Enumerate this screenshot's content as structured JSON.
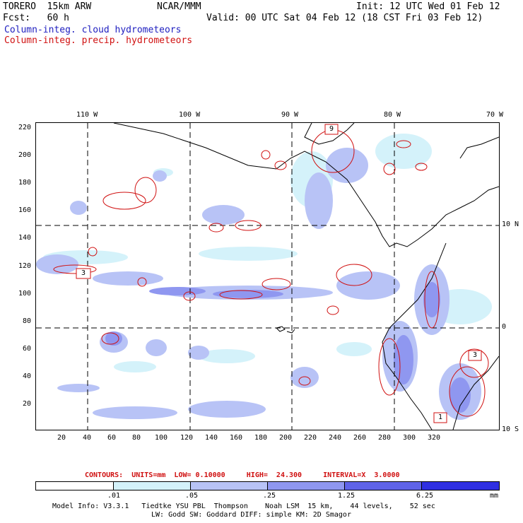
{
  "header": {
    "model": "TORERO  15km ARW",
    "org": "NCAR/MMM",
    "init": "Init: 12 UTC Wed 01 Feb 12",
    "fcst": "Fcst:   60 h",
    "valid": "Valid: 00 UTC Sat 04 Feb 12 (18 CST Fri 03 Feb 12)",
    "field_cloud": "Column-integ. cloud hydrometeors",
    "field_precip": "Column-integ. precip. hydrometeors"
  },
  "map": {
    "lon_labels": [
      "110 W",
      "100 W",
      "90 W",
      "80 W",
      "70 W"
    ],
    "lat_labels": [
      "10 N",
      "0",
      "10 S"
    ],
    "y_ticks": [
      "220",
      "200",
      "180",
      "160",
      "140",
      "120",
      "100",
      "80",
      "60",
      "40",
      "20"
    ],
    "x_ticks": [
      "20",
      "40",
      "60",
      "80",
      "100",
      "120",
      "140",
      "160",
      "180",
      "200",
      "220",
      "240",
      "260",
      "280",
      "300",
      "320"
    ],
    "box_labels": [
      "9",
      "3",
      "3",
      "1"
    ]
  },
  "contours_line": "CONTOURS:  UNITS=mm  LOW= 0.10000     HIGH=  24.300     INTERVAL=X  3.0000",
  "legend": {
    "breaks": [
      ".01",
      ".05",
      ".25",
      "1.25",
      "6.25"
    ],
    "unit": "mm",
    "colors": [
      "#ffffff",
      "#d4f2fa",
      "#b8c3f6",
      "#8f97f0",
      "#5f63e8",
      "#2f2fe2"
    ]
  },
  "footer": {
    "line1": "Model Info: V3.3.1   Tiedtke YSU PBL  Thompson    Noah LSM  15 km,    44 levels,    52 sec",
    "line2": "LW: Godd SW: Goddard DIFF: simple KM: 2D Smagor"
  }
}
